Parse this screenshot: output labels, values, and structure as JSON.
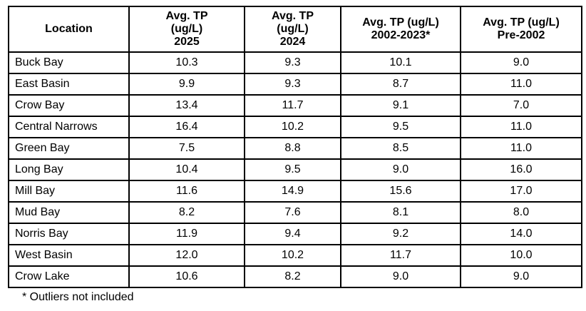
{
  "table": {
    "headers": [
      "Location",
      "Avg. TP\n(ug/L)\n2025",
      "Avg. TP\n(ug/L)\n2024",
      "Avg. TP (ug/L)\n2002-2023*",
      "Avg. TP (ug/L)\nPre-2002"
    ],
    "rows": [
      [
        "Buck Bay",
        "10.3",
        "9.3",
        "10.1",
        "9.0"
      ],
      [
        "East Basin",
        "9.9",
        "9.3",
        "8.7",
        "11.0"
      ],
      [
        "Crow Bay",
        "13.4",
        "11.7",
        "9.1",
        "7.0"
      ],
      [
        "Central Narrows",
        "16.4",
        "10.2",
        "9.5",
        "11.0"
      ],
      [
        "Green Bay",
        "7.5",
        "8.8",
        "8.5",
        "11.0"
      ],
      [
        "Long Bay",
        "10.4",
        "9.5",
        "9.0",
        "16.0"
      ],
      [
        "Mill Bay",
        "11.6",
        "14.9",
        "15.6",
        "17.0"
      ],
      [
        "Mud Bay",
        "8.2",
        "7.6",
        "8.1",
        "8.0"
      ],
      [
        "Norris Bay",
        "11.9",
        "9.4",
        "9.2",
        "14.0"
      ],
      [
        "West Basin",
        "12.0",
        "10.2",
        "11.7",
        "10.0"
      ],
      [
        "Crow Lake",
        "10.6",
        "8.2",
        "9.0",
        "9.0"
      ]
    ]
  },
  "footnote": "* Outliers not included"
}
